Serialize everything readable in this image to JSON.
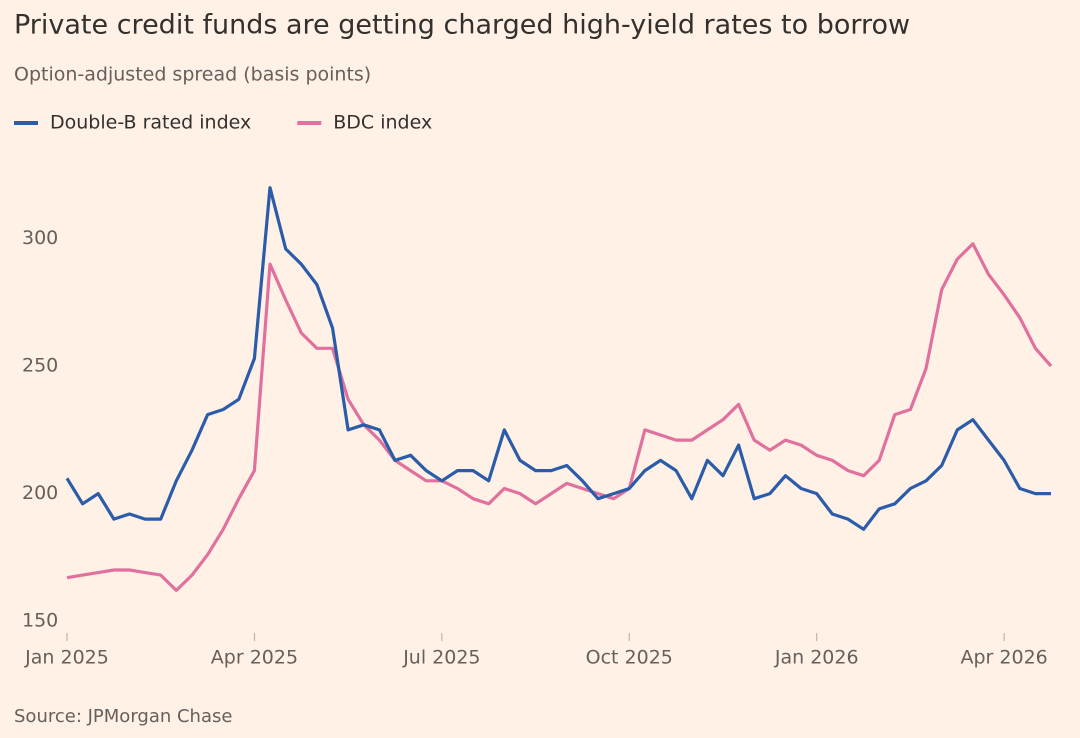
{
  "chart_data": {
    "type": "line",
    "title": "Private credit funds are getting charged high-yield rates to borrow",
    "subtitle": "Option-adjusted spread (basis points)",
    "source": "Source: JPMorgan Chase",
    "x": [
      0,
      0.25,
      0.5,
      0.75,
      1,
      1.25,
      1.5,
      1.75,
      2,
      2.25,
      2.5,
      2.75,
      3,
      3.25,
      3.5,
      3.75,
      4,
      4.25,
      4.5,
      4.75,
      5,
      5.25,
      5.5,
      5.75,
      6,
      6.25,
      6.5,
      6.75,
      7,
      7.25,
      7.5,
      7.75,
      8,
      8.25,
      8.5,
      8.75,
      9,
      9.25,
      9.5,
      9.75,
      10,
      10.25,
      10.5,
      10.75,
      11,
      11.25,
      11.5,
      11.75,
      12,
      12.25,
      12.5,
      12.75,
      13,
      13.25,
      13.5,
      13.75,
      14,
      14.25,
      14.5,
      14.75,
      15,
      15.25,
      15.5,
      15.75
    ],
    "xlim": [
      0,
      15.75
    ],
    "xticks": [
      {
        "value": 0,
        "label": "Jan 2025"
      },
      {
        "value": 3,
        "label": "Apr 2025"
      },
      {
        "value": 6,
        "label": "Jul 2025"
      },
      {
        "value": 9,
        "label": "Oct 2025"
      },
      {
        "value": 12,
        "label": "Jan 2026"
      },
      {
        "value": 15,
        "label": "Apr 2026"
      }
    ],
    "ylim": [
      150,
      325
    ],
    "yticks": [
      150,
      200,
      250,
      300
    ],
    "grid": false,
    "legend": "top-left",
    "series": [
      {
        "name": "Double-B rated index",
        "color": "#2a5caa",
        "values": [
          206,
          196,
          200,
          190,
          192,
          190,
          190,
          205,
          217,
          231,
          233,
          237,
          253,
          320,
          296,
          290,
          282,
          265,
          225,
          227,
          225,
          213,
          215,
          209,
          205,
          209,
          209,
          205,
          225,
          213,
          209,
          209,
          211,
          205,
          198,
          200,
          202,
          209,
          213,
          209,
          198,
          213,
          207,
          219,
          198,
          200,
          207,
          202,
          200,
          192,
          190,
          186,
          194,
          196,
          202,
          205,
          211,
          225,
          229,
          221,
          213,
          202,
          200,
          200
        ]
      },
      {
        "name": "BDC index",
        "color": "#e0719e",
        "values": [
          167,
          168,
          169,
          170,
          170,
          169,
          168,
          162,
          168,
          176,
          186,
          198,
          209,
          290,
          276,
          263,
          257,
          257,
          237,
          227,
          221,
          213,
          209,
          205,
          205,
          202,
          198,
          196,
          202,
          200,
          196,
          200,
          204,
          202,
          200,
          198,
          202,
          225,
          223,
          221,
          221,
          225,
          229,
          235,
          221,
          217,
          221,
          219,
          215,
          213,
          209,
          207,
          213,
          231,
          233,
          249,
          280,
          292,
          298,
          286,
          278,
          269,
          257,
          250
        ]
      }
    ]
  }
}
